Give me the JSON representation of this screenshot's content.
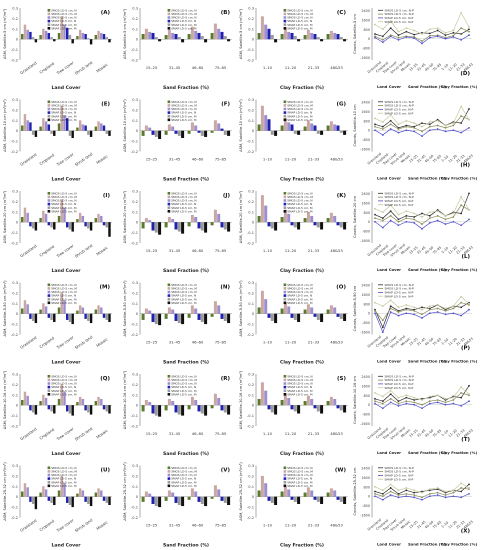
{
  "colors": {
    "b1": "#5a7a2e",
    "b2": "#caa7a3",
    "b3": "#9c8fd0",
    "b4": "#2020b0",
    "b5": "#9b9b9b",
    "b6": "#101010",
    "line_smos": "#303030",
    "line_smos_alt": "#8a8a5a",
    "line_smap": "#5050d0",
    "line_mix": "#c8c8a0"
  },
  "row_ylabels": [
    "ΔSM, Satellite-5 cm (m³/m³)",
    "ΔSM, Satellite-10 cm (m³/m³)",
    "ΔSM, Satellite-20 cm (m³/m³)",
    "ΔSM, Satellite-5-50 cm (m³/m³)",
    "ΔSM, Satellite-10-16 cm (m³/m³)",
    "ΔSM, Satellite-25-32 cm (m³/m³)"
  ],
  "row_count_labels": [
    "Counts, Satellite-5 cm",
    "Counts, Satellite-10 cm",
    "Counts, Satellite-20 cm",
    "Counts, Satellite-5-50 cm",
    "Counts, Satellite-10-16 cm",
    "Counts, Satellite-25-32 cm"
  ],
  "col_xlabels": [
    "Land Cover",
    "Sand Fraction (%)",
    "Clay Fraction (%)"
  ],
  "land_cover_ticks": [
    "Grassland",
    "Cropland",
    "Tree cover",
    "Shrub land",
    "Mosaic"
  ],
  "sand_ticks": [
    "15–25",
    "31–45",
    "46–60",
    "75–85"
  ],
  "clay_ticks": [
    "1–10",
    "11–20",
    "21–33",
    "48&53"
  ],
  "count_ticks": [
    "Grassland",
    "Cropland",
    "Tree cover",
    "Shrub land",
    "Mosaic",
    "15–25",
    "31–45",
    "46–60",
    "75–85",
    "1–10",
    "11–20",
    "21–33",
    "48&53"
  ],
  "count_group_labels": [
    "Land Cover",
    "Sand Fraction (%)",
    "Clay Fraction (%)"
  ],
  "y_ticks_bar": [
    "0.3",
    "0.2",
    "0.1",
    "0",
    "-0.1",
    "-0.2"
  ],
  "y_ticks_count": [
    "2400",
    "1600",
    "800",
    "0",
    "-800",
    "-1600"
  ],
  "panel_letters": [
    [
      "(A)",
      "(B)",
      "(C)",
      "(D)"
    ],
    [
      "(E)",
      "(F)",
      "(G)",
      "(H)"
    ],
    [
      "(I)",
      "(J)",
      "(K)",
      "(L)"
    ],
    [
      "(M)",
      "(N)",
      "(O)",
      "(P)"
    ],
    [
      "(Q)",
      "(R)",
      "(S)",
      "(T)"
    ],
    [
      "(U)",
      "(V)",
      "(W)",
      "(X)"
    ]
  ],
  "legend_bar": [
    "SMOS LD-5 cm, N",
    "SMOS LD-5 cm, M",
    "SMOS LD-5 cm, N",
    "SMAP LD-5 cm, N",
    "SMAP LD-5 cm, M",
    "SMAP LD-5 cm, M"
  ],
  "legend_count": [
    "SMOS LD-5 cm, N-P",
    "SMOS LD-5 cm, N-P",
    "SMAP LD-5 cm, N-P",
    "SMAP LD-5 cm, N-P"
  ],
  "chart_data": {
    "type": "bar",
    "layout": "6 rows x 4 columns of panels",
    "rows": [
      {
        "land_cover": [
          [
            0.05,
            0.14,
            0.09,
            0.07,
            0.02,
            -0.03
          ],
          [
            0.04,
            0.1,
            0.08,
            0.06,
            0.02,
            -0.02
          ],
          [
            0.06,
            0.22,
            0.14,
            0.11,
            0.04,
            -0.04
          ],
          [
            0.03,
            0.09,
            0.06,
            0.05,
            0.01,
            -0.05
          ],
          [
            0.04,
            0.08,
            0.06,
            0.05,
            0.02,
            -0.03
          ]
        ],
        "sand": [
          [
            0.05,
            0.1,
            0.07,
            0.06,
            0.02,
            -0.02
          ],
          [
            0.04,
            0.09,
            0.06,
            0.05,
            0.02,
            -0.03
          ],
          [
            0.05,
            0.12,
            0.08,
            0.06,
            0.03,
            -0.03
          ],
          [
            0.06,
            0.15,
            0.1,
            0.07,
            0.03,
            -0.02
          ]
        ],
        "clay": [
          [
            0.06,
            0.22,
            0.14,
            0.1,
            0.04,
            -0.03
          ],
          [
            0.05,
            0.11,
            0.07,
            0.06,
            0.03,
            -0.02
          ],
          [
            0.04,
            0.09,
            0.06,
            0.05,
            0.02,
            -0.02
          ],
          [
            0.05,
            0.08,
            0.06,
            0.05,
            0.02,
            -0.02
          ]
        ],
        "counts": {
          "smos_n": [
            400,
            200,
            900,
            300,
            600,
            350,
            500,
            450,
            700,
            300,
            500,
            400,
            800
          ],
          "smos_m": [
            200,
            -100,
            300,
            100,
            200,
            150,
            -200,
            250,
            300,
            100,
            250,
            900,
            600
          ],
          "smap_n": [
            100,
            -300,
            200,
            -100,
            150,
            50,
            -400,
            100,
            200,
            0,
            150,
            -100,
            300
          ],
          "smap_m": [
            1200,
            800,
            1500,
            600,
            900,
            700,
            400,
            800,
            900,
            500,
            700,
            2200,
            1000
          ]
        }
      },
      {
        "land_cover": [
          [
            0.05,
            0.16,
            0.1,
            0.08,
            -0.04,
            -0.06
          ],
          [
            0.04,
            0.12,
            0.09,
            0.06,
            -0.03,
            -0.05
          ],
          [
            0.07,
            0.24,
            0.15,
            0.12,
            -0.05,
            -0.07
          ],
          [
            0.03,
            0.1,
            0.06,
            0.05,
            -0.04,
            -0.06
          ],
          [
            0.04,
            0.09,
            0.07,
            0.05,
            -0.03,
            -0.05
          ]
        ],
        "sand": [
          [
            -0.05,
            0.05,
            0.03,
            -0.04,
            -0.06,
            -0.08
          ],
          [
            -0.04,
            0.06,
            0.04,
            -0.03,
            -0.05,
            -0.07
          ],
          [
            -0.03,
            0.08,
            0.05,
            -0.02,
            -0.05,
            -0.06
          ],
          [
            -0.02,
            0.1,
            0.07,
            0.02,
            -0.04,
            -0.05
          ]
        ],
        "clay": [
          [
            0.06,
            0.24,
            0.15,
            0.11,
            -0.04,
            -0.05
          ],
          [
            0.05,
            0.12,
            0.08,
            0.06,
            -0.03,
            -0.04
          ],
          [
            0.04,
            0.1,
            0.07,
            0.05,
            -0.03,
            -0.04
          ],
          [
            0.05,
            0.09,
            0.06,
            0.05,
            -0.02,
            -0.04
          ]
        ],
        "counts": {
          "smos_n": [
            500,
            300,
            800,
            200,
            400,
            300,
            600,
            500,
            900,
            400,
            700,
            600,
            1800
          ],
          "smos_m": [
            300,
            100,
            500,
            100,
            300,
            200,
            -100,
            300,
            400,
            200,
            400,
            1200,
            900
          ],
          "smap_n": [
            0,
            -400,
            100,
            -200,
            0,
            -100,
            -500,
            0,
            100,
            -100,
            0,
            -200,
            200
          ],
          "smap_m": [
            1000,
            700,
            1300,
            500,
            800,
            600,
            300,
            700,
            800,
            400,
            600,
            2000,
            900
          ]
        }
      },
      {
        "land_cover": [
          [
            0.05,
            0.14,
            0.09,
            -0.04,
            -0.06,
            -0.08
          ],
          [
            0.04,
            0.11,
            0.08,
            -0.03,
            -0.05,
            -0.07
          ],
          [
            0.06,
            0.22,
            0.14,
            -0.05,
            -0.07,
            -0.09
          ],
          [
            0.03,
            0.09,
            0.06,
            -0.04,
            -0.06,
            -0.08
          ],
          [
            0.04,
            0.08,
            0.06,
            -0.03,
            -0.05,
            -0.14
          ]
        ],
        "sand": [
          [
            -0.06,
            0.04,
            0.02,
            -0.08,
            -0.1,
            -0.12
          ],
          [
            -0.05,
            0.05,
            0.03,
            -0.07,
            -0.09,
            -0.11
          ],
          [
            -0.04,
            0.07,
            0.05,
            -0.06,
            -0.08,
            -0.1
          ],
          [
            -0.03,
            0.12,
            0.08,
            -0.05,
            -0.07,
            -0.09
          ]
        ],
        "clay": [
          [
            0.06,
            0.26,
            0.16,
            -0.04,
            -0.06,
            -0.08
          ],
          [
            0.05,
            0.12,
            0.08,
            -0.03,
            -0.05,
            -0.07
          ],
          [
            0.04,
            0.1,
            0.06,
            -0.03,
            -0.05,
            -0.07
          ],
          [
            0.04,
            0.09,
            0.06,
            -0.03,
            -0.05,
            -0.07
          ]
        ],
        "counts": {
          "smos_n": [
            600,
            300,
            900,
            200,
            500,
            400,
            700,
            500,
            1000,
            500,
            800,
            700,
            2400
          ],
          "smos_m": [
            300,
            100,
            500,
            0,
            300,
            200,
            -200,
            300,
            500,
            200,
            400,
            1400,
            1000
          ],
          "smap_n": [
            0,
            -500,
            100,
            -300,
            0,
            -100,
            -600,
            -100,
            100,
            -200,
            0,
            -300,
            200
          ],
          "smap_m": [
            1100,
            800,
            1400,
            600,
            900,
            700,
            400,
            800,
            900,
            500,
            700,
            2100,
            1000
          ]
        }
      },
      {
        "land_cover": [
          [
            0.05,
            0.13,
            0.09,
            -0.05,
            -0.07,
            -0.09
          ],
          [
            0.04,
            0.1,
            0.07,
            -0.04,
            -0.06,
            -0.08
          ],
          [
            0.06,
            0.2,
            0.13,
            -0.06,
            -0.08,
            -0.1
          ],
          [
            0.03,
            0.08,
            0.06,
            -0.05,
            -0.07,
            -0.09
          ],
          [
            0.04,
            0.08,
            0.06,
            -0.04,
            -0.06,
            -0.08
          ]
        ],
        "sand": [
          [
            -0.06,
            0.05,
            0.03,
            -0.08,
            -0.1,
            -0.11
          ],
          [
            -0.05,
            0.06,
            0.04,
            -0.07,
            -0.09,
            -0.1
          ],
          [
            -0.04,
            0.08,
            0.05,
            -0.06,
            -0.08,
            -0.1
          ],
          [
            -0.03,
            0.12,
            0.08,
            -0.05,
            -0.07,
            -0.09
          ]
        ],
        "clay": [
          [
            0.06,
            0.22,
            0.14,
            -0.04,
            -0.07,
            -0.09
          ],
          [
            0.05,
            0.11,
            0.07,
            -0.04,
            -0.06,
            -0.08
          ],
          [
            0.04,
            0.09,
            0.06,
            -0.03,
            -0.06,
            -0.08
          ],
          [
            0.04,
            0.08,
            0.06,
            -0.03,
            -0.05,
            -0.07
          ]
        ],
        "counts": {
          "smos_n": [
            300,
            -1200,
            600,
            200,
            400,
            300,
            500,
            400,
            700,
            300,
            600,
            500,
            900
          ],
          "smos_m": [
            200,
            -600,
            400,
            100,
            300,
            200,
            -100,
            300,
            400,
            200,
            400,
            900,
            700
          ],
          "smap_n": [
            0,
            -1600,
            100,
            -200,
            0,
            -100,
            -400,
            0,
            100,
            -100,
            0,
            -200,
            300
          ],
          "smap_m": [
            900,
            600,
            1100,
            500,
            700,
            500,
            300,
            600,
            700,
            400,
            600,
            1400,
            800
          ]
        }
      },
      {
        "land_cover": [
          [
            0.05,
            0.13,
            0.09,
            -0.05,
            -0.07,
            -0.09
          ],
          [
            0.04,
            0.1,
            0.07,
            -0.04,
            -0.06,
            -0.08
          ],
          [
            0.06,
            0.2,
            0.13,
            -0.06,
            -0.08,
            -0.1
          ],
          [
            0.03,
            0.08,
            0.06,
            -0.05,
            -0.07,
            -0.09
          ],
          [
            0.04,
            0.08,
            0.06,
            -0.04,
            -0.06,
            -0.08
          ]
        ],
        "sand": [
          [
            -0.06,
            0.05,
            0.03,
            -0.08,
            -0.1,
            -0.11
          ],
          [
            -0.05,
            0.06,
            0.04,
            -0.07,
            -0.09,
            -0.1
          ],
          [
            -0.04,
            0.08,
            0.05,
            -0.06,
            -0.08,
            -0.1
          ],
          [
            -0.03,
            0.11,
            0.07,
            -0.05,
            -0.07,
            -0.09
          ]
        ],
        "clay": [
          [
            0.06,
            0.22,
            0.14,
            -0.04,
            -0.07,
            -0.09
          ],
          [
            0.05,
            0.11,
            0.07,
            -0.04,
            -0.06,
            -0.08
          ],
          [
            0.04,
            0.09,
            0.06,
            -0.03,
            -0.06,
            -0.08
          ],
          [
            0.04,
            0.08,
            0.06,
            -0.03,
            -0.05,
            -0.07
          ]
        ],
        "counts": {
          "smos_n": [
            500,
            300,
            900,
            300,
            600,
            400,
            500,
            600,
            800,
            400,
            700,
            600,
            1600
          ],
          "smos_m": [
            300,
            100,
            500,
            100,
            300,
            200,
            0,
            300,
            400,
            200,
            400,
            1000,
            800
          ],
          "smap_n": [
            100,
            -300,
            200,
            -100,
            100,
            0,
            -300,
            100,
            200,
            0,
            100,
            -100,
            300
          ],
          "smap_m": [
            1000,
            700,
            1200,
            600,
            800,
            600,
            400,
            700,
            800,
            500,
            600,
            1500,
            900
          ]
        }
      },
      {
        "land_cover": [
          [
            0.05,
            0.13,
            0.09,
            -0.05,
            -0.07,
            -0.12
          ],
          [
            0.04,
            0.1,
            0.07,
            -0.04,
            -0.06,
            -0.08
          ],
          [
            0.06,
            0.2,
            0.13,
            -0.06,
            -0.08,
            -0.1
          ],
          [
            0.03,
            0.08,
            0.06,
            -0.05,
            -0.07,
            -0.09
          ],
          [
            0.04,
            0.08,
            0.06,
            -0.04,
            -0.06,
            -0.08
          ]
        ],
        "sand": [
          [
            -0.05,
            0.05,
            0.03,
            -0.07,
            -0.09,
            -0.1
          ],
          [
            -0.04,
            0.06,
            0.04,
            -0.06,
            -0.08,
            -0.09
          ],
          [
            -0.03,
            0.08,
            0.05,
            -0.05,
            -0.07,
            -0.09
          ],
          [
            -0.02,
            0.11,
            0.07,
            -0.04,
            -0.06,
            -0.08
          ]
        ],
        "clay": [
          [
            0.06,
            0.2,
            0.13,
            -0.04,
            -0.06,
            -0.08
          ],
          [
            0.05,
            0.1,
            0.07,
            -0.03,
            -0.05,
            -0.07
          ],
          [
            0.04,
            0.09,
            0.06,
            -0.03,
            -0.05,
            -0.07
          ],
          [
            0.04,
            0.08,
            0.06,
            -0.03,
            -0.05,
            -0.07
          ]
        ],
        "counts": {
          "smos_n": [
            400,
            200,
            700,
            200,
            500,
            300,
            400,
            500,
            600,
            300,
            500,
            400,
            1000
          ],
          "smos_m": [
            200,
            0,
            400,
            100,
            200,
            100,
            -100,
            200,
            300,
            100,
            300,
            700,
            600
          ],
          "smap_n": [
            0,
            -300,
            100,
            -100,
            0,
            -100,
            -300,
            0,
            100,
            -100,
            0,
            -100,
            200
          ],
          "smap_m": [
            800,
            500,
            1000,
            500,
            700,
            500,
            300,
            600,
            700,
            400,
            500,
            1100,
            700
          ]
        }
      }
    ],
    "bar_ylim": [
      -0.2,
      0.3
    ],
    "count_ylim": [
      -1800,
      2600
    ]
  }
}
